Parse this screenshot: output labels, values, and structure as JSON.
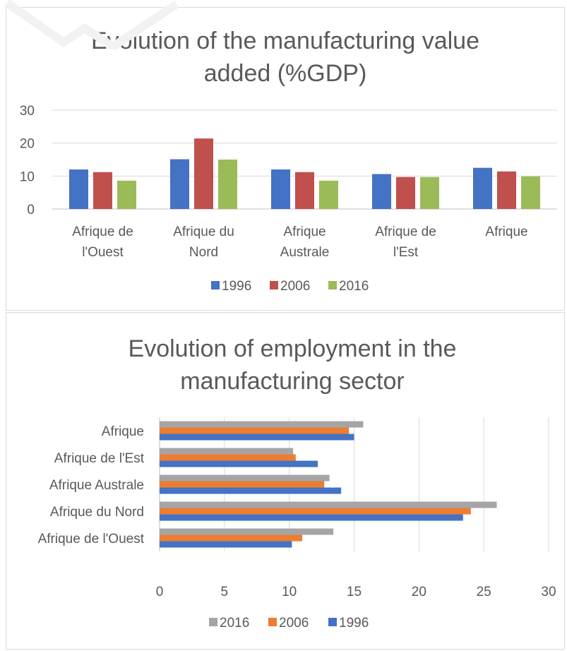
{
  "charts": {
    "gdp": {
      "type": "bar",
      "title_lines": [
        "Evolution of the manufacturing value",
        "added (%GDP)"
      ],
      "categories": [
        [
          "Afrique de",
          "l'Ouest"
        ],
        [
          "Afrique du",
          "Nord"
        ],
        [
          "Afrique",
          "Australe"
        ],
        [
          "Afrique de",
          "l'Est"
        ],
        [
          "Afrique"
        ]
      ],
      "series": [
        {
          "name": "1996",
          "color": "#4472c4",
          "values": [
            12,
            15.1,
            12,
            10.6,
            12.5
          ]
        },
        {
          "name": "2006",
          "color": "#c0504d",
          "values": [
            11.2,
            21.4,
            11.2,
            9.7,
            11.4
          ]
        },
        {
          "name": "2016",
          "color": "#9bbb59",
          "values": [
            8.6,
            15,
            8.6,
            9.7,
            9.9
          ]
        }
      ],
      "ylim": [
        0,
        30
      ],
      "yticks": [
        "0",
        "10",
        "20",
        "30"
      ],
      "grid": true,
      "legend": "bottom"
    },
    "employment": {
      "type": "bar",
      "orientation": "horizontal",
      "title_lines": [
        "Evolution of employment in the",
        "manufacturing sector"
      ],
      "categories": [
        "Afrique de l'Ouest",
        "Afrique du Nord",
        "Afrique Australe",
        "Afrique de l'Est",
        "Afrique"
      ],
      "series": [
        {
          "name": "1996",
          "color": "#4472c4",
          "values": [
            10.2,
            23.4,
            14,
            12.2,
            15
          ]
        },
        {
          "name": "2006",
          "color": "#ed7d31",
          "values": [
            11,
            24,
            12.7,
            10.5,
            14.6
          ]
        },
        {
          "name": "2016",
          "color": "#a5a5a5",
          "values": [
            13.4,
            26,
            13.1,
            10.3,
            15.7
          ]
        }
      ],
      "legend_order": [
        "2016",
        "2006",
        "1996"
      ],
      "xlim": [
        0,
        30
      ],
      "xticks": [
        "0",
        "5",
        "10",
        "15",
        "20",
        "25",
        "30"
      ],
      "grid": true,
      "legend": "bottom"
    }
  }
}
